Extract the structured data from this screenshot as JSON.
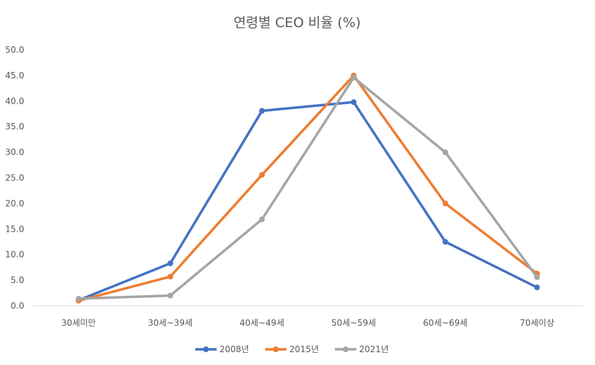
{
  "chart_data": {
    "type": "line",
    "title": "연령별 CEO 비율 (%)",
    "xlabel": "",
    "ylabel": "",
    "categories": [
      "30세미만",
      "30세~39세",
      "40세~49세",
      "50세~59세",
      "60세~69세",
      "70세이상"
    ],
    "ylim": [
      0,
      50
    ],
    "yticks": [
      "0.0",
      "5.0",
      "10.0",
      "15.0",
      "20.0",
      "25.0",
      "30.0",
      "35.0",
      "40.0",
      "45.0",
      "50.0"
    ],
    "grid": false,
    "legend_position": "bottom",
    "series": [
      {
        "name": "2008년",
        "color": "#4472C4",
        "values": [
          1.1,
          8.3,
          38.1,
          39.8,
          12.5,
          3.6
        ]
      },
      {
        "name": "2015년",
        "color": "#ED7D31",
        "values": [
          1.0,
          5.7,
          25.6,
          45.0,
          20.0,
          6.3
        ]
      },
      {
        "name": "2021년",
        "color": "#A5A5A5",
        "values": [
          1.4,
          2.0,
          16.9,
          44.6,
          30.0,
          5.6
        ]
      }
    ]
  }
}
